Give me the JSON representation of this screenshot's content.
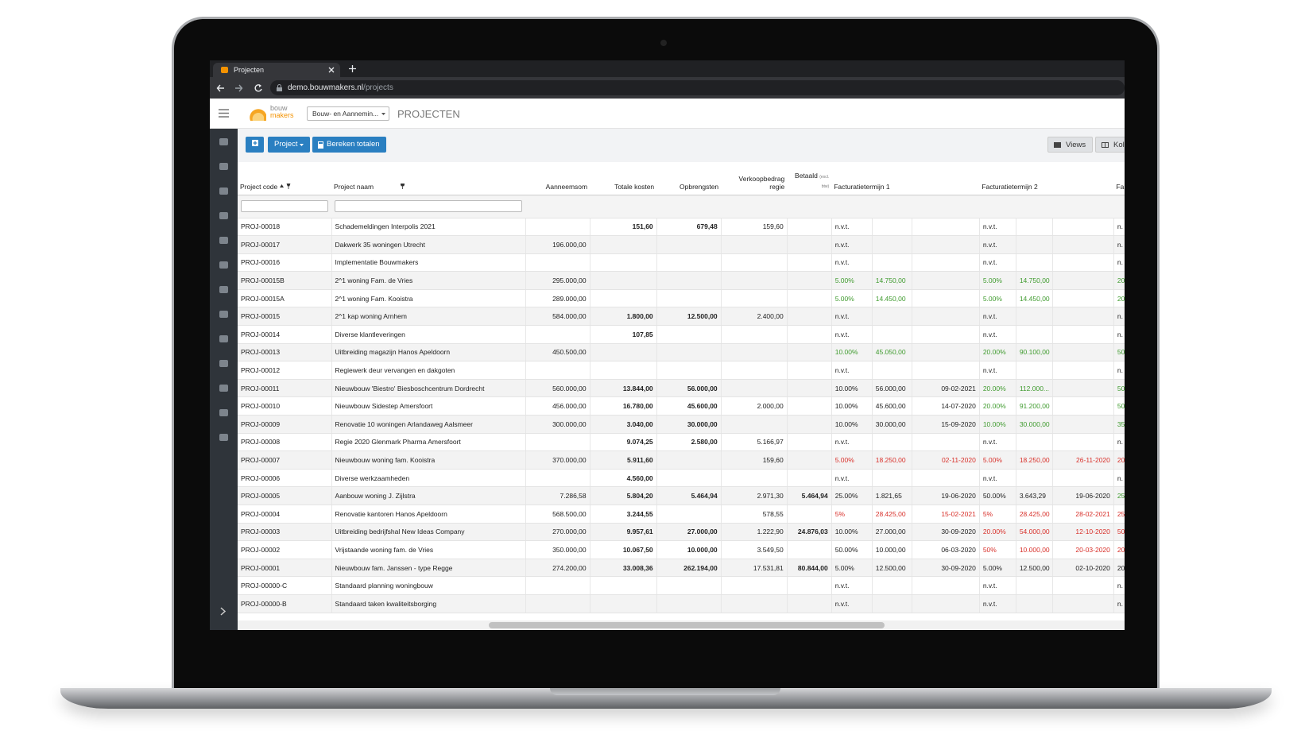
{
  "browser": {
    "tab_title": "Projecten",
    "url_domain": "demo.bouwmakers.nl",
    "url_path": "/projects"
  },
  "header": {
    "logo_line1": "bouw",
    "logo_line2": "makers",
    "company_select": "Bouw- en Aannemin...",
    "page_title": "PROJECTEN"
  },
  "toolbar": {
    "project_button": "Project",
    "calc_button": "Bereken totalen",
    "views_button": "Views",
    "columns_button": "Kolo"
  },
  "table": {
    "headers": [
      "Project code",
      "Project naam",
      "Aanneemsom",
      "Totale kosten",
      "Opbrengsten",
      "Verkoopbedrag regie",
      "Betaald",
      "Facturatietermijn 1",
      "Facturatietermijn 2",
      "Fa"
    ],
    "betaald_note": "(excl. btw)",
    "rows": [
      {
        "cells": [
          "PROJ-00018",
          "Schademeldingen Interpolis 2021",
          null,
          "151,60",
          "679,48",
          "159,60",
          null,
          "n.v.t.",
          null,
          null,
          "n.v.t.",
          null,
          null,
          "n."
        ],
        "term_colors": [
          null,
          null,
          null
        ]
      },
      {
        "cells": [
          "PROJ-00017",
          "Dakwerk 35 woningen Utrecht",
          "196.000,00",
          null,
          null,
          null,
          null,
          "n.v.t.",
          null,
          null,
          "n.v.t.",
          null,
          null,
          "n."
        ],
        "term_colors": [
          null,
          null,
          null
        ]
      },
      {
        "cells": [
          "PROJ-00016",
          "Implementatie Bouwmakers",
          null,
          null,
          null,
          null,
          null,
          "n.v.t.",
          null,
          null,
          "n.v.t.",
          null,
          null,
          "n."
        ],
        "term_colors": [
          null,
          null,
          null
        ]
      },
      {
        "cells": [
          "PROJ-00015B",
          "2^1 woning Fam. de Vries",
          "295.000,00",
          null,
          null,
          null,
          null,
          "5.00%",
          "14.750,00",
          null,
          "5.00%",
          "14.750,00",
          null,
          "20"
        ],
        "term_colors": [
          "#3f9b2e",
          "#3f9b2e",
          "#3f9b2e"
        ]
      },
      {
        "cells": [
          "PROJ-00015A",
          "2^1 woning Fam. Kooistra",
          "289.000,00",
          null,
          null,
          null,
          null,
          "5.00%",
          "14.450,00",
          null,
          "5.00%",
          "14.450,00",
          null,
          "20"
        ],
        "term_colors": [
          "#3f9b2e",
          "#3f9b2e",
          "#3f9b2e"
        ]
      },
      {
        "cells": [
          "PROJ-00015",
          "2^1 kap woning Arnhem",
          "584.000,00",
          "1.800,00",
          "12.500,00",
          "2.400,00",
          null,
          "n.v.t.",
          null,
          null,
          "n.v.t.",
          null,
          null,
          "n."
        ],
        "term_colors": [
          null,
          null,
          null
        ]
      },
      {
        "cells": [
          "PROJ-00014",
          "Diverse klantleveringen",
          null,
          "107,85",
          null,
          null,
          null,
          "n.v.t.",
          null,
          null,
          "n.v.t.",
          null,
          null,
          "n."
        ],
        "term_colors": [
          null,
          null,
          null
        ]
      },
      {
        "cells": [
          "PROJ-00013",
          "Uitbreiding magazijn Hanos Apeldoorn",
          "450.500,00",
          null,
          null,
          null,
          null,
          "10.00%",
          "45.050,00",
          null,
          "20.00%",
          "90.100,00",
          null,
          "50"
        ],
        "term_colors": [
          "#3f9b2e",
          "#3f9b2e",
          "#3f9b2e"
        ]
      },
      {
        "cells": [
          "PROJ-00012",
          "Regiewerk deur vervangen en dakgoten",
          null,
          null,
          null,
          null,
          null,
          "n.v.t.",
          null,
          null,
          "n.v.t.",
          null,
          null,
          "n."
        ],
        "term_colors": [
          null,
          null,
          null
        ]
      },
      {
        "cells": [
          "PROJ-00011",
          "Nieuwbouw 'Biestro' Biesboschcentrum Dordrecht",
          "560.000,00",
          "13.844,00",
          "56.000,00",
          null,
          null,
          "10.00%",
          "56.000,00",
          "09-02-2021",
          "20.00%",
          "112.000...",
          null,
          "50"
        ],
        "term_colors": [
          null,
          "#3f9b2e",
          "#3f9b2e"
        ]
      },
      {
        "cells": [
          "PROJ-00010",
          "Nieuwbouw Sidestep Amersfoort",
          "456.000,00",
          "16.780,00",
          "45.600,00",
          "2.000,00",
          null,
          "10.00%",
          "45.600,00",
          "14-07-2020",
          "20.00%",
          "91.200,00",
          null,
          "50"
        ],
        "term_colors": [
          null,
          "#3f9b2e",
          "#3f9b2e"
        ]
      },
      {
        "cells": [
          "PROJ-00009",
          "Renovatie 10 woningen Arlandaweg Aalsmeer",
          "300.000,00",
          "3.040,00",
          "30.000,00",
          null,
          null,
          "10.00%",
          "30.000,00",
          "15-09-2020",
          "10.00%",
          "30.000,00",
          null,
          "35"
        ],
        "term_colors": [
          null,
          "#3f9b2e",
          "#3f9b2e"
        ]
      },
      {
        "cells": [
          "PROJ-00008",
          "Regie 2020 Glenmark Pharma Amersfoort",
          null,
          "9.074,25",
          "2.580,00",
          "5.166,97",
          null,
          "n.v.t.",
          null,
          null,
          "n.v.t.",
          null,
          null,
          "n."
        ],
        "term_colors": [
          null,
          null,
          null
        ]
      },
      {
        "cells": [
          "PROJ-00007",
          "Nieuwbouw woning fam. Kooistra",
          "370.000,00",
          "5.911,60",
          null,
          "159,60",
          null,
          "5.00%",
          "18.250,00",
          "02-11-2020",
          "5.00%",
          "18.250,00",
          "26-11-2020",
          "20"
        ],
        "term_colors": [
          "#d8302a",
          "#d8302a",
          "#d8302a"
        ]
      },
      {
        "cells": [
          "PROJ-00006",
          "Diverse werkzaamheden",
          null,
          "4.560,00",
          null,
          null,
          null,
          "n.v.t.",
          null,
          null,
          "n.v.t.",
          null,
          null,
          "n."
        ],
        "term_colors": [
          null,
          null,
          null
        ]
      },
      {
        "cells": [
          "PROJ-00005",
          "Aanbouw woning J. Zijlstra",
          "7.286,58",
          "5.804,20",
          "5.464,94",
          "2.971,30",
          "5.464,94",
          "25.00%",
          "1.821,65",
          "19-06-2020",
          "50.00%",
          "3.643,29",
          "19-06-2020",
          "25"
        ],
        "term_colors": [
          null,
          null,
          "#3f9b2e"
        ]
      },
      {
        "cells": [
          "PROJ-00004",
          "Renovatie kantoren Hanos Apeldoorn",
          "568.500,00",
          "3.244,55",
          null,
          "578,55",
          null,
          "5%",
          "28.425,00",
          "15-02-2021",
          "5%",
          "28.425,00",
          "28-02-2021",
          "25"
        ],
        "term_colors": [
          "#d8302a",
          "#d8302a",
          "#d8302a"
        ]
      },
      {
        "cells": [
          "PROJ-00003",
          "Uitbreiding bedrijfshal New Ideas Company",
          "270.000,00",
          "9.957,61",
          "27.000,00",
          "1.222,90",
          "24.876,03",
          "10.00%",
          "27.000,00",
          "30-09-2020",
          "20.00%",
          "54.000,00",
          "12-10-2020",
          "50"
        ],
        "term_colors": [
          null,
          "#d8302a",
          "#d8302a"
        ]
      },
      {
        "cells": [
          "PROJ-00002",
          "Vrijstaande woning fam. de Vries",
          "350.000,00",
          "10.067,50",
          "10.000,00",
          "3.549,50",
          null,
          "50.00%",
          "10.000,00",
          "06-03-2020",
          "50%",
          "10.000,00",
          "20-03-2020",
          "20"
        ],
        "term_colors": [
          null,
          "#d8302a",
          "#d8302a"
        ]
      },
      {
        "cells": [
          "PROJ-00001",
          "Nieuwbouw fam. Janssen - type Regge",
          "274.200,00",
          "33.008,36",
          "262.194,00",
          "17.531,81",
          "80.844,00",
          "5.00%",
          "12.500,00",
          "30-09-2020",
          "5.00%",
          "12.500,00",
          "02-10-2020",
          "20"
        ],
        "term_colors": [
          null,
          null,
          null
        ]
      },
      {
        "cells": [
          "PROJ-00000-C",
          "Standaard planning woningbouw",
          null,
          null,
          null,
          null,
          null,
          "n.v.t.",
          null,
          null,
          "n.v.t.",
          null,
          null,
          "n."
        ],
        "term_colors": [
          null,
          null,
          null
        ]
      },
      {
        "cells": [
          "PROJ-00000-B",
          "Standaard taken kwaliteitsborging",
          null,
          null,
          null,
          null,
          null,
          "n.v.t.",
          null,
          null,
          "n.v.t.",
          null,
          null,
          "n."
        ],
        "term_colors": [
          null,
          null,
          null
        ]
      }
    ]
  }
}
